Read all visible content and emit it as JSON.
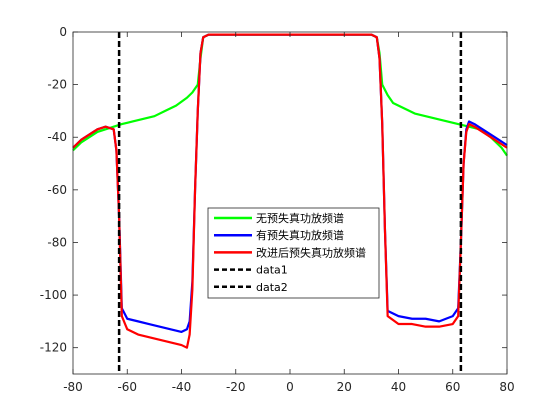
{
  "chart_data": {
    "type": "line",
    "xlim": [
      -80,
      80
    ],
    "ylim": [
      -130,
      0
    ],
    "xticks": [
      "-80",
      "-60",
      "-40",
      "-20",
      "0",
      "20",
      "40",
      "60",
      "80"
    ],
    "yticks": [
      "0",
      "-20",
      "-40",
      "-60",
      "-80",
      "-100",
      "-120"
    ],
    "grid": false,
    "legend_location": "center",
    "series": [
      {
        "name": "无预失真功放频谱",
        "color": "#00ff00",
        "x": [
          -80,
          -77,
          -74,
          -71,
          -68,
          -65,
          -62,
          -58,
          -54,
          -50,
          -46,
          -42,
          -38,
          -36,
          -34,
          -33,
          -32,
          -30,
          -25,
          -20,
          -15,
          -10,
          -5,
          0,
          5,
          10,
          15,
          20,
          25,
          30,
          32,
          33,
          34,
          36,
          38,
          42,
          46,
          50,
          54,
          58,
          62,
          66,
          70,
          74,
          78,
          80
        ],
        "y": [
          -45,
          -42,
          -40,
          -38,
          -37,
          -36,
          -35,
          -34,
          -33,
          -32,
          -30,
          -28,
          -25,
          -23,
          -20,
          -10,
          -2,
          -1,
          -1,
          -1,
          -1,
          -1,
          -1,
          -1,
          -1,
          -1,
          -1,
          -1,
          -1,
          -1,
          -2,
          -8,
          -20,
          -24,
          -27,
          -29,
          -31,
          -32,
          -33,
          -34,
          -35,
          -36,
          -37,
          -40,
          -44,
          -47
        ]
      },
      {
        "name": "有预失真功放频谱",
        "color": "#0000ff",
        "x": [
          -80,
          -77,
          -74,
          -71,
          -68,
          -65,
          -64,
          -63,
          -62,
          -60,
          -56,
          -52,
          -48,
          -44,
          -40,
          -38,
          -37,
          -36,
          -35,
          -34,
          -33,
          -32,
          -30,
          -25,
          -20,
          -15,
          -10,
          -5,
          0,
          5,
          10,
          15,
          20,
          25,
          30,
          32,
          33,
          34,
          35,
          36,
          40,
          45,
          50,
          55,
          60,
          62,
          63,
          64,
          65,
          66,
          68,
          71,
          74,
          77,
          80
        ],
        "y": [
          -44,
          -41,
          -39,
          -37,
          -36,
          -37,
          -45,
          -70,
          -105,
          -109,
          -110,
          -111,
          -112,
          -113,
          -114,
          -113,
          -110,
          -95,
          -60,
          -30,
          -8,
          -2,
          -1,
          -1,
          -1,
          -1,
          -1,
          -1,
          -1,
          -1,
          -1,
          -1,
          -1,
          -1,
          -1,
          -2,
          -10,
          -35,
          -75,
          -106,
          -108,
          -109,
          -109,
          -110,
          -108,
          -105,
          -80,
          -50,
          -37,
          -34,
          -35,
          -37,
          -39,
          -41,
          -43
        ]
      },
      {
        "name": "改进后预失真功放频谱",
        "color": "#ff0000",
        "x": [
          -80,
          -77,
          -74,
          -71,
          -68,
          -65,
          -64,
          -63,
          -62,
          -60,
          -56,
          -52,
          -48,
          -44,
          -40,
          -38,
          -37,
          -36,
          -35,
          -34,
          -33,
          -32,
          -30,
          -25,
          -20,
          -15,
          -10,
          -5,
          0,
          5,
          10,
          15,
          20,
          25,
          30,
          32,
          33,
          34,
          35,
          36,
          40,
          45,
          50,
          55,
          60,
          62,
          63,
          64,
          65,
          66,
          68,
          71,
          74,
          77,
          80
        ],
        "y": [
          -44,
          -41,
          -39,
          -37,
          -36,
          -37,
          -45,
          -70,
          -108,
          -113,
          -115,
          -116,
          -117,
          -118,
          -119,
          -120,
          -115,
          -98,
          -60,
          -30,
          -8,
          -2,
          -1,
          -1,
          -1,
          -1,
          -1,
          -1,
          -1,
          -1,
          -1,
          -1,
          -1,
          -1,
          -1,
          -2,
          -10,
          -35,
          -75,
          -108,
          -111,
          -111,
          -112,
          -112,
          -111,
          -108,
          -80,
          -50,
          -38,
          -35,
          -36,
          -38,
          -40,
          -42,
          -44
        ]
      },
      {
        "name": "data1",
        "color": "#000000",
        "dashed": true,
        "x": [
          -63,
          -63
        ],
        "y": [
          0,
          -130
        ]
      },
      {
        "name": "data2",
        "color": "#000000",
        "dashed": true,
        "x": [
          63,
          63
        ],
        "y": [
          0,
          -130
        ]
      }
    ]
  }
}
